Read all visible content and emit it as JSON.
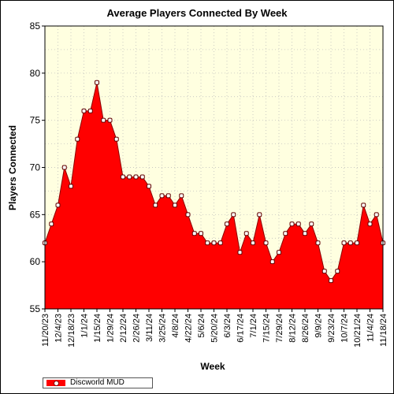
{
  "chart_data": {
    "type": "area",
    "title": "Average Players Connected By Week",
    "xlabel": "Week",
    "ylabel": "Players Connected",
    "ylim": [
      55,
      85
    ],
    "yticks": [
      55,
      60,
      65,
      70,
      75,
      80,
      85
    ],
    "grid": true,
    "legend_position": "bottom-left",
    "colors": {
      "fill": "#ff0000",
      "plot_background": "#ffffe0",
      "marker": "#ffffff"
    },
    "x_tick_labels": [
      "11/20/23",
      "12/4/23",
      "12/18/23",
      "1/1/24",
      "1/15/24",
      "1/29/24",
      "2/12/24",
      "2/26/24",
      "3/11/24",
      "3/25/24",
      "4/8/24",
      "4/22/24",
      "5/6/24",
      "5/20/24",
      "6/3/24",
      "6/17/24",
      "7/1/24",
      "7/15/24",
      "7/29/24",
      "8/12/24",
      "8/26/24",
      "9/9/24",
      "9/23/24",
      "10/7/24",
      "10/21/24",
      "11/4/24",
      "11/18/24"
    ],
    "x": [
      "11/20/23",
      "11/27/23",
      "12/4/23",
      "12/11/23",
      "12/18/23",
      "12/25/23",
      "1/1/24",
      "1/8/24",
      "1/15/24",
      "1/22/24",
      "1/29/24",
      "2/5/24",
      "2/12/24",
      "2/19/24",
      "2/26/24",
      "3/4/24",
      "3/11/24",
      "3/18/24",
      "3/25/24",
      "4/1/24",
      "4/8/24",
      "4/15/24",
      "4/22/24",
      "4/29/24",
      "5/6/24",
      "5/13/24",
      "5/20/24",
      "5/27/24",
      "6/3/24",
      "6/10/24",
      "6/17/24",
      "6/24/24",
      "7/1/24",
      "7/8/24",
      "7/15/24",
      "7/22/24",
      "7/29/24",
      "8/5/24",
      "8/12/24",
      "8/19/24",
      "8/26/24",
      "9/2/24",
      "9/9/24",
      "9/16/24",
      "9/23/24",
      "9/30/24",
      "10/7/24",
      "10/14/24",
      "10/21/24",
      "10/28/24",
      "11/4/24",
      "11/11/24",
      "11/18/24"
    ],
    "series": [
      {
        "name": "Discworld MUD",
        "values": [
          62,
          64,
          66,
          70,
          68,
          73,
          76,
          76,
          79,
          75,
          75,
          73,
          69,
          69,
          69,
          69,
          68,
          66,
          67,
          67,
          66,
          67,
          65,
          63,
          63,
          62,
          62,
          62,
          64,
          65,
          61,
          63,
          62,
          65,
          62,
          60,
          61,
          63,
          64,
          64,
          63,
          64,
          62,
          59,
          58,
          59,
          62,
          62,
          62,
          66,
          64,
          65,
          62
        ]
      }
    ]
  },
  "legend": {
    "label": "Discworld MUD"
  }
}
